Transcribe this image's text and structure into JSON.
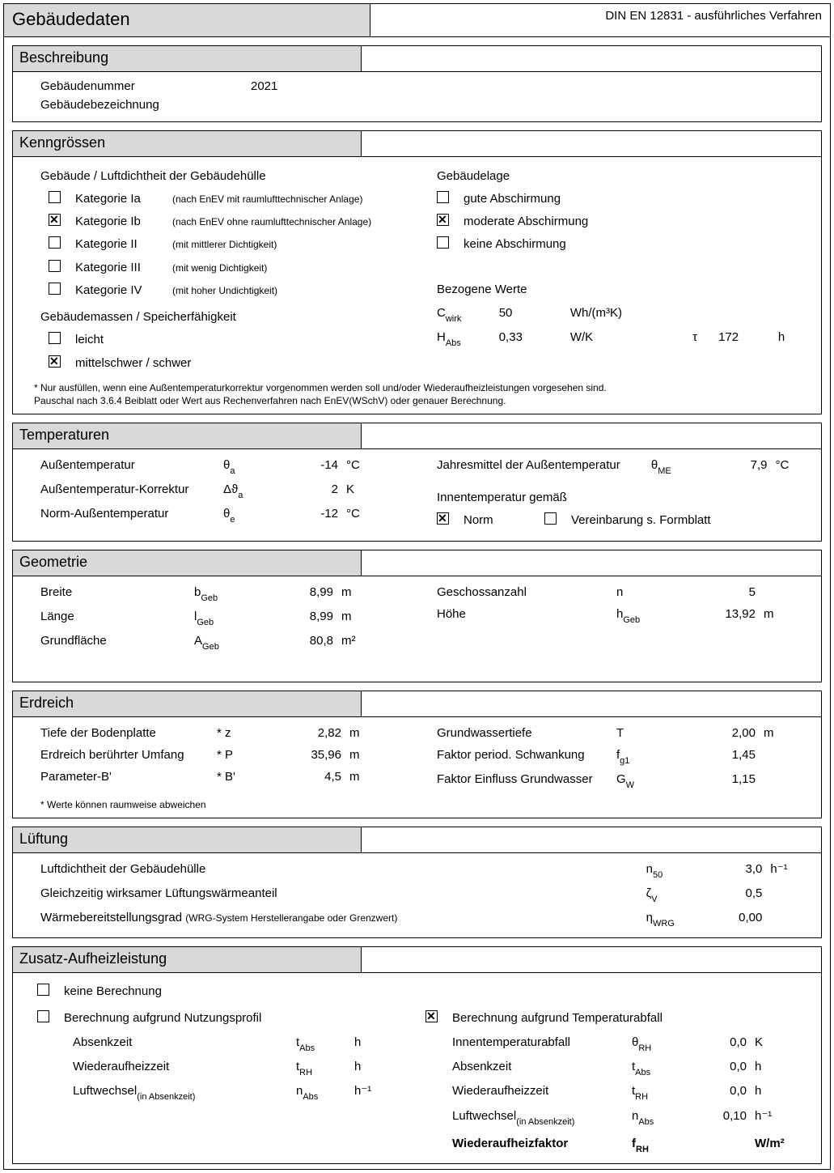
{
  "title": "Gebäudedaten",
  "standard": "DIN EN 12831 - ausführliches Verfahren",
  "beschreibung": {
    "header": "Beschreibung",
    "nummer_label": "Gebäudenummer",
    "nummer_value": "2021",
    "bezeichnung_label": "Gebäudebezeichnung"
  },
  "kenngr": {
    "header": "Kenngrössen",
    "luft_label": "Gebäude / Luftdichtheit der Gebäudehülle",
    "cats": [
      {
        "checked": false,
        "label": "Kategorie Ia",
        "note": "(nach EnEV mit raumlufttechnischer Anlage)"
      },
      {
        "checked": true,
        "label": "Kategorie Ib",
        "note": "(nach EnEV ohne raumlufttechnischer Anlage)"
      },
      {
        "checked": false,
        "label": "Kategorie II",
        "note": "(mit mittlerer Dichtigkeit)"
      },
      {
        "checked": false,
        "label": "Kategorie III",
        "note": "(mit wenig Dichtigkeit)"
      },
      {
        "checked": false,
        "label": "Kategorie IV",
        "note": "(mit hoher Undichtigkeit)"
      }
    ],
    "lage_label": "Gebäudelage",
    "lage_opts": [
      {
        "checked": false,
        "label": "gute Abschirmung"
      },
      {
        "checked": true,
        "label": "moderate Abschirmung"
      },
      {
        "checked": false,
        "label": "keine Abschirmung"
      }
    ],
    "masse_label": "Gebäudemassen / Speicherfähigkeit",
    "masse_opts": [
      {
        "checked": false,
        "label": "leicht"
      },
      {
        "checked": true,
        "label": "mittelschwer / schwer"
      }
    ],
    "bezogene_label": "Bezogene Werte",
    "cwirk_sym": "C",
    "cwirk_sub": "wirk",
    "cwirk_val": "50",
    "cwirk_unit": "Wh/(m³K)",
    "habs_sym": "H",
    "habs_sub": "Abs",
    "habs_val": "0,33",
    "habs_unit": "W/K",
    "tau_sym": "τ",
    "tau_val": "172",
    "tau_unit": "h",
    "footnote": "* Nur ausfüllen, wenn eine Außentemperaturkorrektur vorgenommen werden soll und/oder Wiederaufheizleistungen vorgesehen sind.\nPauschal nach 3.6.4 Beiblatt oder Wert aus Rechenverfahren nach EnEV(WSchV) oder genauer Berechnung."
  },
  "temp": {
    "header": "Temperaturen",
    "rows_l": [
      {
        "label": "Außentemperatur",
        "sym": "θ",
        "sub": "a",
        "val": "-14",
        "unit": "°C"
      },
      {
        "label": "Außentemperatur-Korrektur",
        "sym": "Δϑ",
        "sub": "a",
        "val": "2",
        "unit": "K"
      },
      {
        "label": "Norm-Außentemperatur",
        "sym": "θ",
        "sub": "e",
        "val": "-12",
        "unit": "°C"
      }
    ],
    "jahres_label": "Jahresmittel der Außentemperatur",
    "jahres_sym": "θ",
    "jahres_sub": "ME",
    "jahres_val": "7,9",
    "jahres_unit": "°C",
    "innen_label": "Innentemperatur gemäß",
    "norm_checked": true,
    "norm_label": "Norm",
    "vereinb_checked": false,
    "vereinb_label": "Vereinbarung s. Formblatt"
  },
  "geom": {
    "header": "Geometrie",
    "rows_l": [
      {
        "label": "Breite",
        "sym": "b",
        "sub": "Geb",
        "val": "8,99",
        "unit": "m"
      },
      {
        "label": "Länge",
        "sym": "l",
        "sub": "Geb",
        "val": "8,99",
        "unit": "m"
      },
      {
        "label": "Grundfläche",
        "sym": "A",
        "sub": "Geb",
        "val": "80,8",
        "unit": "m²"
      }
    ],
    "rows_r": [
      {
        "label": "Geschossanzahl",
        "sym": "n",
        "sub": "",
        "val": "5",
        "unit": ""
      },
      {
        "label": "Höhe",
        "sym": "h",
        "sub": "Geb",
        "val": "13,92",
        "unit": "m"
      }
    ]
  },
  "erd": {
    "header": "Erdreich",
    "rows_l": [
      {
        "label": "Tiefe der Bodenplatte",
        "sym": "* z",
        "val": "2,82",
        "unit": "m"
      },
      {
        "label": "Erdreich berührter Umfang",
        "sym": "* P",
        "val": "35,96",
        "unit": "m"
      },
      {
        "label": "Parameter-B'",
        "sym": "* B'",
        "val": "4,5",
        "unit": "m"
      }
    ],
    "footnote": "* Werte können raumweise abweichen",
    "rows_r": [
      {
        "label": "Grundwassertiefe",
        "sym": "T",
        "sub": "",
        "val": "2,00",
        "unit": "m"
      },
      {
        "label": "Faktor period. Schwankung",
        "sym": "f",
        "sub": "g1",
        "val": "1,45",
        "unit": ""
      },
      {
        "label": "Faktor Einfluss Grundwasser",
        "sym": "G",
        "sub": "W",
        "val": "1,15",
        "unit": ""
      }
    ]
  },
  "lueftung": {
    "header": "Lüftung",
    "rows": [
      {
        "label": "Luftdichtheit der Gebäudehülle",
        "note": "",
        "sym": "n",
        "sub": "50",
        "val": "3,0",
        "unit": "h⁻¹"
      },
      {
        "label": "Gleichzeitig wirksamer Lüftungswärmeanteil",
        "note": "",
        "sym": "ζ",
        "sub": "V",
        "val": "0,5",
        "unit": ""
      },
      {
        "label": "Wärmebereitstellungsgrad",
        "note": "(WRG-System Herstellerangabe oder Grenzwert)",
        "sym": "η",
        "sub": "WRG",
        "val": "0,00",
        "unit": ""
      }
    ]
  },
  "zusatz": {
    "header": "Zusatz-Aufheizleistung",
    "opt_none": {
      "checked": false,
      "label": "keine Berechnung"
    },
    "opt_profil": {
      "checked": false,
      "label": "Berechnung aufgrund Nutzungsprofil"
    },
    "profil_rows": [
      {
        "label": "Absenkzeit",
        "sym": "t",
        "sub": "Abs",
        "unit": "h"
      },
      {
        "label": "Wiederaufheizzeit",
        "sym": "t",
        "sub": "RH",
        "unit": "h"
      },
      {
        "label": "Luftwechsel",
        "lnote": "(in Absenkzeit)",
        "sym": "n",
        "sub": "Abs",
        "unit": "h⁻¹"
      }
    ],
    "opt_temp": {
      "checked": true,
      "label": "Berechnung aufgrund Temperaturabfall"
    },
    "temp_rows": [
      {
        "label": "Innentemperaturabfall",
        "sym": "θ",
        "sub": "RH",
        "val": "0,0",
        "unit": "K"
      },
      {
        "label": "Absenkzeit",
        "sym": "t",
        "sub": "Abs",
        "val": "0,0",
        "unit": "h"
      },
      {
        "label": "Wiederaufheizzeit",
        "sym": "t",
        "sub": "RH",
        "val": "0,0",
        "unit": "h"
      },
      {
        "label": "Luftwechsel",
        "lnote": "(in Absenkzeit)",
        "sym": "n",
        "sub": "Abs",
        "val": "0,10",
        "unit": "h⁻¹"
      }
    ],
    "final_label": "Wiederaufheizfaktor",
    "final_sym": "f",
    "final_sub": "RH",
    "final_unit": "W/m²"
  }
}
